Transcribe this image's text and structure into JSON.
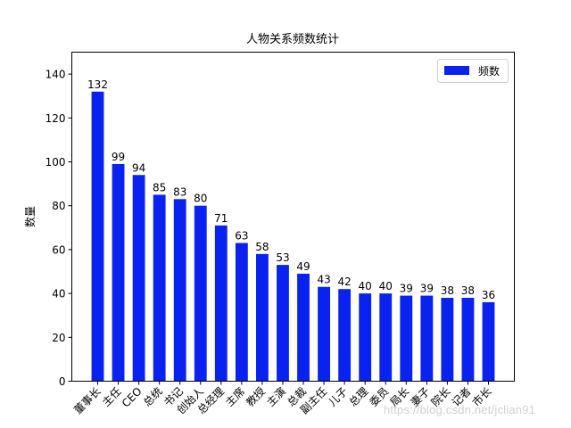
{
  "chart_data": {
    "type": "bar",
    "title": "人物关系频数统计",
    "xlabel": "",
    "ylabel": "数量",
    "categories": [
      "董事长",
      "主任",
      "CEO",
      "总统",
      "书记",
      "创始人",
      "总经理",
      "主席",
      "教授",
      "主演",
      "总裁",
      "副主任",
      "儿子",
      "总理",
      "委员",
      "局长",
      "妻子",
      "院长",
      "记者",
      "市长"
    ],
    "series": [
      {
        "name": "频数",
        "color": "#0a22f0",
        "values": [
          132,
          99,
          94,
          85,
          83,
          80,
          71,
          63,
          58,
          53,
          49,
          43,
          42,
          40,
          40,
          39,
          39,
          38,
          38,
          36
        ]
      }
    ],
    "ylim": [
      0,
      150
    ],
    "yticks": [
      0,
      20,
      40,
      60,
      80,
      100,
      120,
      140
    ],
    "xtick_rotation": 45,
    "grid": false,
    "legend_position": "upper right",
    "data_labels": true
  },
  "watermark": "https://blog.csdn.net/jclian91"
}
